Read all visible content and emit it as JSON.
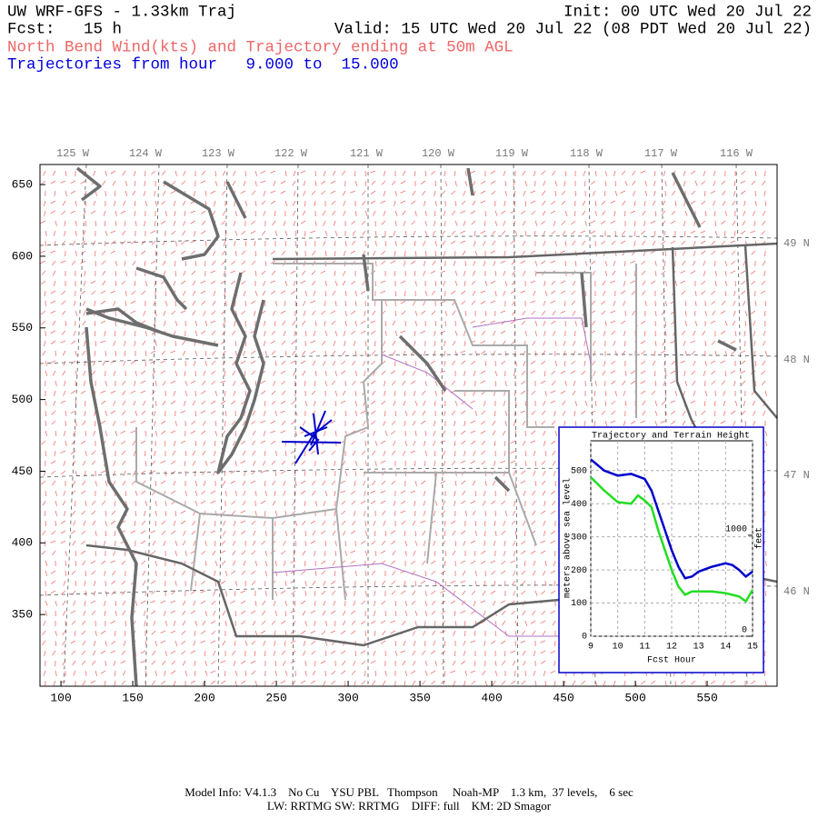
{
  "header": {
    "title": "UW WRF-GFS - 1.33km Traj",
    "forecast": "Fcst:   15 h",
    "init": "Init: 00 UTC Wed 20 Jul 22",
    "valid": "Valid: 15 UTC Wed 20 Jul 22 (08 PDT Wed 20 Jul 22)",
    "subtitle": "North Bend Wind(kts) and Trajectory ending at 50m AGL",
    "hours": "Trajectories from hour   9.000 to  15.000"
  },
  "map": {
    "xlim": [
      85.4,
      598.7
    ],
    "ylim": [
      300,
      664
    ],
    "xticks": [
      100,
      150,
      200,
      250,
      300,
      350,
      400,
      450,
      500,
      550
    ],
    "yticks": [
      350,
      400,
      450,
      500,
      550,
      600,
      650
    ],
    "longitudes": [
      "125 W",
      "124 W",
      "123 W",
      "122 W",
      "121 W",
      "120 W",
      "119 W",
      "118 W",
      "117 W",
      "116 W"
    ],
    "latitudes": [
      "49 N",
      "48 N",
      "47 N",
      "46 N"
    ]
  },
  "chart_data": {
    "type": "line",
    "title": "Trajectory and Terrain Height",
    "xlabel": "Fcst Hour",
    "ylabel": "meters above sea level",
    "y2label": "feet",
    "xlim": [
      9,
      15
    ],
    "ylim": [
      0,
      590
    ],
    "y2lim": [
      0,
      1936
    ],
    "xticks": [
      9,
      10,
      11,
      12,
      13,
      14,
      15
    ],
    "yticks": [
      0,
      100,
      200,
      300,
      400,
      500
    ],
    "y2ticks": [
      0,
      1000
    ],
    "grid": true,
    "series": [
      {
        "name": "Trajectory",
        "color": "#0000cc",
        "x": [
          9,
          9.5,
          10,
          10.5,
          11,
          11.25,
          11.5,
          11.75,
          12,
          12.25,
          12.5,
          12.75,
          13,
          13.5,
          14,
          14.25,
          14.5,
          14.75,
          15
        ],
        "values": [
          534,
          500,
          485,
          490,
          475,
          440,
          380,
          320,
          260,
          210,
          175,
          180,
          195,
          210,
          220,
          215,
          200,
          180,
          195
        ]
      },
      {
        "name": "Terrain",
        "color": "#22dd22",
        "x": [
          9,
          9.5,
          10,
          10.5,
          10.75,
          11,
          11.25,
          11.5,
          11.75,
          12,
          12.25,
          12.5,
          12.75,
          13,
          13.5,
          14,
          14.5,
          14.75,
          15
        ],
        "values": [
          480,
          440,
          405,
          400,
          425,
          410,
          390,
          320,
          260,
          200,
          150,
          125,
          135,
          135,
          135,
          130,
          120,
          105,
          140
        ]
      }
    ]
  },
  "footer": {
    "line1": "Model Info: V4.1.3    No Cu    YSU PBL   Thompson     Noah-MP    1.3 km,  37 levels,    6 sec",
    "line2": "LW: RRTMG SW: RRTMG    DIFF: full    KM: 2D Smagor"
  }
}
